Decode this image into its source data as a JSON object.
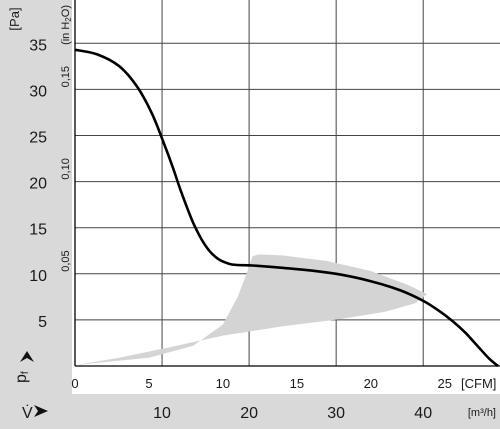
{
  "chart_data": {
    "type": "line",
    "y_axis": {
      "label": "[Pa]",
      "symbol": "pf",
      "range": [
        0,
        37
      ],
      "ticks": [
        5,
        10,
        15,
        20,
        25,
        30,
        35
      ],
      "secondary_label": "(in H2O)",
      "secondary_ticks": [
        {
          "value": 10.0,
          "label": "0,05"
        },
        {
          "value": 20.0,
          "label": "0,10"
        },
        {
          "value": 30.0,
          "label": "0,15"
        }
      ]
    },
    "x_axis": {
      "label": "[CFM]",
      "range": [
        0,
        30.5
      ],
      "ticks": [
        0,
        5,
        10,
        15,
        20,
        25
      ],
      "secondary_symbol": "V̇",
      "secondary_label": "[m³/h]",
      "secondary_ticks": [
        10,
        20,
        30,
        40
      ],
      "secondary_unit_factor": 1.699
    },
    "grid": true,
    "series": [
      {
        "type": "line",
        "x": [
          0,
          1.5,
          3.0,
          4.2,
          5.2,
          6.0,
          6.6,
          7.2,
          8.0,
          8.8,
          9.6,
          10.4,
          11.0,
          12.0,
          14.0,
          16.0,
          18.0,
          20.0,
          22.0,
          23.5,
          24.6,
          25.5,
          26.4,
          27.2,
          28.0,
          28.6
        ],
        "y": [
          34.3,
          33.8,
          32.5,
          30.3,
          27.4,
          24.2,
          21.6,
          18.8,
          15.5,
          13.1,
          11.7,
          11.1,
          10.95,
          10.9,
          10.65,
          10.35,
          9.9,
          9.2,
          8.2,
          7.1,
          6.0,
          4.9,
          3.6,
          2.2,
          0.8,
          0.0
        ]
      }
    ],
    "operating_band": {
      "upper": [
        [
          0,
          0.1
        ],
        [
          5,
          0.9
        ],
        [
          8,
          2.2
        ],
        [
          10,
          4.5
        ],
        [
          11,
          7.5
        ],
        [
          11.6,
          10.0
        ],
        [
          12.0,
          11.9
        ],
        [
          12.4,
          12.1
        ],
        [
          14.0,
          12.0
        ],
        [
          17.0,
          11.4
        ],
        [
          20.0,
          10.3
        ],
        [
          22.5,
          8.8
        ],
        [
          23.8,
          7.8
        ]
      ],
      "lower": [
        [
          23.8,
          7.8
        ],
        [
          23.0,
          6.8
        ],
        [
          21.0,
          5.9
        ],
        [
          18.0,
          5.1
        ],
        [
          14.0,
          4.3
        ],
        [
          10.0,
          3.3
        ],
        [
          6.0,
          1.9
        ],
        [
          3.0,
          0.9
        ],
        [
          0,
          0.1
        ]
      ],
      "color": "#d4d4d4"
    },
    "colors": {
      "margin": "#d9d9d9",
      "curve": "#000000",
      "grid": "#444444"
    }
  }
}
